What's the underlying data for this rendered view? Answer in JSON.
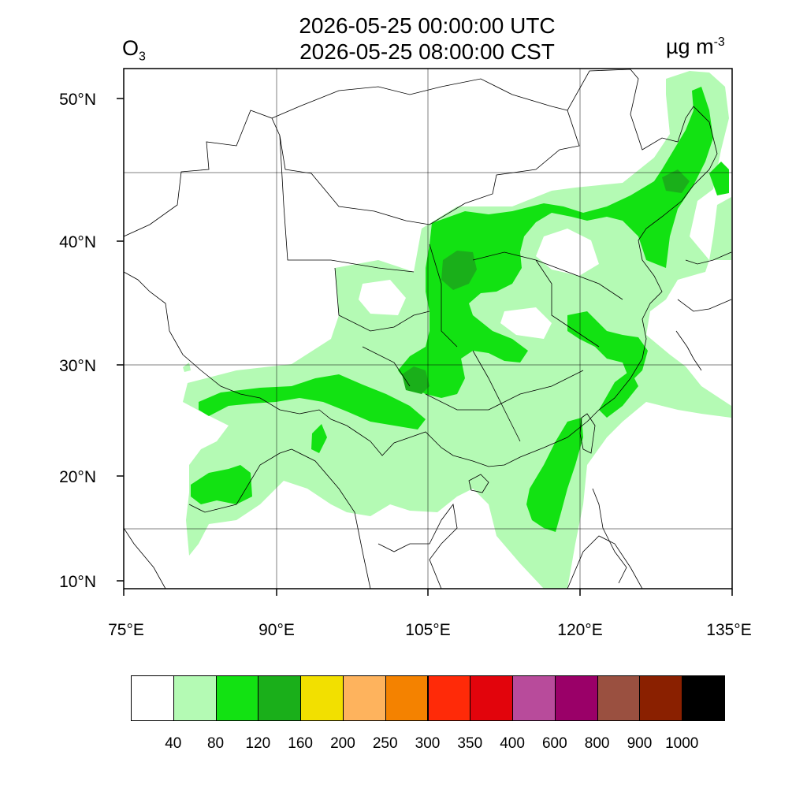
{
  "header": {
    "species": "O",
    "species_sub": "3",
    "time_utc": "2026-05-25 00:00:00 UTC",
    "time_cst": "2026-05-25 08:00:00 CST",
    "units": "µg m",
    "units_sup": "-3"
  },
  "map": {
    "lon_ticks": [
      "75°E",
      "90°E",
      "105°E",
      "120°E",
      "135°E"
    ],
    "lat_ticks": [
      "50°N",
      "40°N",
      "30°N",
      "20°N",
      "10°N"
    ]
  },
  "legend": {
    "colors": [
      "#ffffff",
      "#b4fab4",
      "#12e212",
      "#1aaf1a",
      "#f2e000",
      "#feb35d",
      "#f48200",
      "#ff2a08",
      "#e2040c",
      "#b84b9b",
      "#9a0068",
      "#9a5040",
      "#8a2000",
      "#000000"
    ],
    "labels": [
      "40",
      "80",
      "120",
      "160",
      "200",
      "250",
      "300",
      "350",
      "400",
      "600",
      "800",
      "900",
      "1000"
    ]
  }
}
